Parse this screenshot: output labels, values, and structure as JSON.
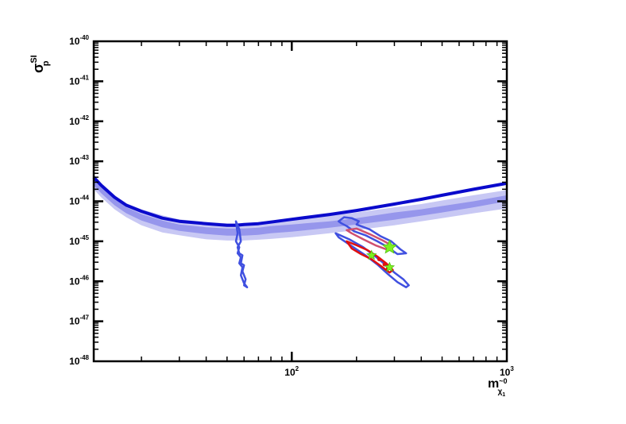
{
  "chart_data": {
    "type": "line",
    "x_scale": "log",
    "y_scale": "log",
    "xlim": [
      12,
      1000
    ],
    "ylim": [
      1e-48,
      1e-40
    ],
    "xlabel": {
      "base": "m",
      "sup": "~0",
      "sub": "χ",
      "subsub": "1"
    },
    "ylabel": {
      "base": "σ",
      "sup": "SI",
      "sub": "p"
    },
    "x_ticks": [
      {
        "value": 100,
        "base": "10",
        "exp": "2"
      },
      {
        "value": 1000,
        "base": "10",
        "exp": "3"
      }
    ],
    "y_ticks": [
      {
        "value": -40,
        "base": "10",
        "exp": "-40"
      },
      {
        "value": -41,
        "base": "10",
        "exp": "-41"
      },
      {
        "value": -42,
        "base": "10",
        "exp": "-42"
      },
      {
        "value": -43,
        "base": "10",
        "exp": "-43"
      },
      {
        "value": -44,
        "base": "10",
        "exp": "-44"
      },
      {
        "value": -45,
        "base": "10",
        "exp": "-45"
      },
      {
        "value": -46,
        "base": "10",
        "exp": "-46"
      },
      {
        "value": -47,
        "base": "10",
        "exp": "-47"
      },
      {
        "value": -48,
        "base": "10",
        "exp": "-48"
      }
    ],
    "colors": {
      "limit_line": "#0a0acc",
      "band_outer": "#c8c8f4",
      "band_inner": "#9696ec",
      "contour_blue": "#4050e0",
      "contour_pink": "#d05070",
      "contour_red": "#e01010",
      "star": "#80f020"
    },
    "limit_curve": {
      "x": [
        12,
        13,
        15,
        17,
        20,
        25,
        30,
        40,
        50,
        55,
        60,
        70,
        80,
        100,
        150,
        200,
        300,
        400,
        500,
        700,
        1000
      ],
      "log10_y": [
        -43.4,
        -43.6,
        -43.9,
        -44.1,
        -44.25,
        -44.42,
        -44.5,
        -44.56,
        -44.6,
        -44.6,
        -44.58,
        -44.56,
        -44.52,
        -44.45,
        -44.33,
        -44.23,
        -44.07,
        -43.95,
        -43.85,
        -43.7,
        -43.55
      ]
    },
    "band_outer_2sigma": {
      "x": [
        12,
        13,
        15,
        17,
        20,
        25,
        30,
        40,
        50,
        60,
        70,
        80,
        100,
        150,
        200,
        300,
        400,
        500,
        700,
        1000
      ],
      "log10_upper": [
        -43.35,
        -43.55,
        -43.85,
        -44.05,
        -44.2,
        -44.35,
        -44.45,
        -44.52,
        -44.55,
        -44.55,
        -44.52,
        -44.48,
        -44.45,
        -44.36,
        -44.28,
        -44.15,
        -44.07,
        -43.98,
        -43.85,
        -43.72
      ],
      "log10_lower": [
        -43.7,
        -43.9,
        -44.2,
        -44.4,
        -44.6,
        -44.78,
        -44.85,
        -44.95,
        -44.98,
        -44.98,
        -44.96,
        -44.94,
        -44.9,
        -44.8,
        -44.72,
        -44.6,
        -44.5,
        -44.42,
        -44.3,
        -44.18
      ]
    },
    "band_inner_1sigma": {
      "x": [
        12,
        13,
        15,
        17,
        20,
        25,
        30,
        40,
        50,
        60,
        70,
        80,
        100,
        150,
        200,
        300,
        400,
        500,
        700,
        1000
      ],
      "log10_upper": [
        -43.45,
        -43.65,
        -43.95,
        -44.15,
        -44.32,
        -44.48,
        -44.58,
        -44.65,
        -44.68,
        -44.68,
        -44.66,
        -44.62,
        -44.58,
        -44.5,
        -44.42,
        -44.28,
        -44.2,
        -44.12,
        -44.0,
        -43.85
      ],
      "log10_lower": [
        -43.6,
        -43.8,
        -44.1,
        -44.3,
        -44.48,
        -44.65,
        -44.74,
        -44.82,
        -44.86,
        -44.86,
        -44.84,
        -44.8,
        -44.76,
        -44.66,
        -44.58,
        -44.46,
        -44.36,
        -44.28,
        -44.15,
        -44.0
      ]
    },
    "contours": [
      {
        "color_key": "contour_blue",
        "stroke_width": 2.5,
        "x": [
          55,
          57,
          58,
          56,
          57,
          59,
          58,
          60,
          59,
          61,
          60,
          62,
          60,
          58,
          59,
          57,
          58,
          56,
          57,
          55,
          56,
          55
        ],
        "log10_y": [
          -44.5,
          -44.7,
          -45.0,
          -45.15,
          -45.3,
          -45.35,
          -45.55,
          -45.6,
          -45.75,
          -45.95,
          -46.1,
          -46.15,
          -46.05,
          -45.85,
          -45.65,
          -45.55,
          -45.4,
          -45.3,
          -45.15,
          -45.0,
          -44.8,
          -44.5
        ]
      },
      {
        "color_key": "contour_blue",
        "stroke_width": 2.5,
        "x": [
          175,
          190,
          205,
          200,
          230,
          260,
          290,
          320,
          340,
          310,
          280,
          250,
          220,
          195,
          180,
          170,
          165,
          175
        ],
        "log10_y": [
          -44.4,
          -44.42,
          -44.5,
          -44.58,
          -44.7,
          -44.88,
          -45.0,
          -45.2,
          -45.3,
          -45.32,
          -45.15,
          -45.0,
          -44.85,
          -44.75,
          -44.62,
          -44.55,
          -44.5,
          -44.4
        ]
      },
      {
        "color_key": "contour_blue",
        "stroke_width": 2.5,
        "x": [
          160,
          185,
          215,
          245,
          275,
          300,
          330,
          350,
          340,
          310,
          280,
          250,
          220,
          190,
          165,
          160
        ],
        "log10_y": [
          -44.8,
          -44.95,
          -45.15,
          -45.38,
          -45.6,
          -45.78,
          -45.95,
          -46.1,
          -46.15,
          -46.02,
          -45.82,
          -45.58,
          -45.35,
          -45.12,
          -44.9,
          -44.8
        ]
      },
      {
        "color_key": "contour_pink",
        "stroke_width": 2.5,
        "x": [
          180,
          200,
          230,
          265,
          290,
          275,
          245,
          215,
          190,
          180
        ],
        "log10_y": [
          -44.72,
          -44.68,
          -44.82,
          -44.98,
          -45.1,
          -45.2,
          -45.1,
          -44.95,
          -44.8,
          -44.72
        ]
      },
      {
        "color_key": "contour_red",
        "stroke_width": 2.5,
        "x": [
          180,
          200,
          225,
          250,
          275,
          295,
          285,
          260,
          235,
          210,
          190,
          180
        ],
        "log10_y": [
          -45.0,
          -45.1,
          -45.22,
          -45.38,
          -45.55,
          -45.72,
          -45.78,
          -45.62,
          -45.45,
          -45.32,
          -45.18,
          -45.0
        ]
      }
    ],
    "stars": [
      {
        "x": 285,
        "log10_y": -45.15,
        "size": 9
      },
      {
        "x": 235,
        "log10_y": -45.35,
        "size": 6
      },
      {
        "x": 285,
        "log10_y": -45.65,
        "size": 6
      }
    ],
    "red_points": [
      {
        "x": 255,
        "log10_y": -45.45
      },
      {
        "x": 270,
        "log10_y": -45.58
      },
      {
        "x": 280,
        "log10_y": -45.68
      }
    ]
  }
}
